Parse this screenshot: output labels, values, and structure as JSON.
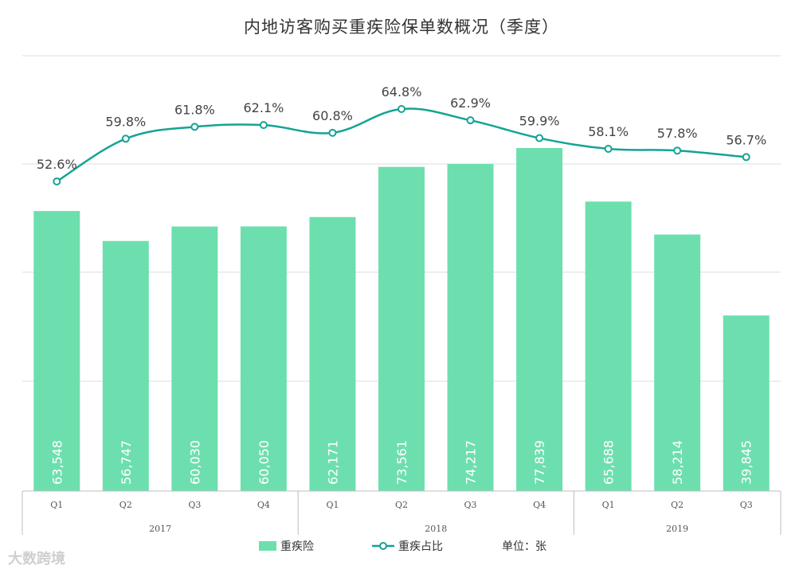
{
  "title": "内地访客购买重疾险保单数概况（季度）",
  "watermark": "大数跨境",
  "unit_label": "单位：张",
  "legend": {
    "bar_label": "重疾险",
    "line_label": "重疾占比"
  },
  "colors": {
    "bar": "#6ddfae",
    "line": "#14a394",
    "grid": "#dcdcdc"
  },
  "chart_data": {
    "type": "bar",
    "categories": [
      "Q1",
      "Q2",
      "Q3",
      "Q4",
      "Q1",
      "Q2",
      "Q3",
      "Q4",
      "Q1",
      "Q2",
      "Q3"
    ],
    "years": [
      {
        "label": "2017",
        "span": 4
      },
      {
        "label": "2018",
        "span": 4
      },
      {
        "label": "2019",
        "span": 3
      }
    ],
    "series": [
      {
        "name": "重疾险",
        "type": "bar",
        "values": [
          63548,
          56747,
          60030,
          60050,
          62171,
          73561,
          74217,
          77839,
          65688,
          58214,
          39845
        ],
        "labels": [
          "63,548",
          "56,747",
          "60,030",
          "60,050",
          "62,171",
          "73,561",
          "74,217",
          "77,839",
          "65,688",
          "58,214",
          "39,845"
        ]
      },
      {
        "name": "重疾占比",
        "type": "line",
        "values": [
          52.6,
          59.8,
          61.8,
          62.1,
          60.8,
          64.8,
          62.9,
          59.9,
          58.1,
          57.8,
          56.7
        ],
        "labels": [
          "52.6%",
          "59.8%",
          "61.8%",
          "62.1%",
          "60.8%",
          "64.8%",
          "62.9%",
          "59.9%",
          "58.1%",
          "57.8%",
          "56.7%"
        ]
      }
    ],
    "ylim": [
      0,
      100000
    ],
    "line_ylim": [
      40,
      75
    ],
    "grid": true,
    "legend_position": "bottom"
  }
}
